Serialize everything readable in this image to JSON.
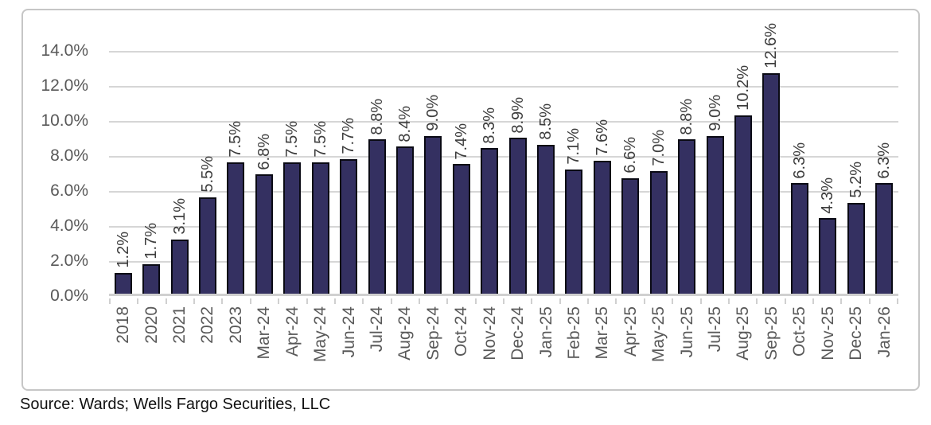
{
  "chart_data": {
    "type": "bar",
    "title": "",
    "xlabel": "",
    "ylabel": "",
    "categories": [
      "2018",
      "2020",
      "2021",
      "2022",
      "2023",
      "Mar-24",
      "Apr-24",
      "May-24",
      "Jun-24",
      "Jul-24",
      "Aug-24",
      "Sep-24",
      "Oct-24",
      "Nov-24",
      "Dec-24",
      "Jan-25",
      "Feb-25",
      "Mar-25",
      "Apr-25",
      "May-25",
      "Jun-25",
      "Jul-25",
      "Aug-25",
      "Sep-25",
      "Oct-25",
      "Nov-25",
      "Dec-25",
      "Jan-26"
    ],
    "values": [
      1.2,
      1.7,
      3.1,
      5.5,
      7.5,
      6.8,
      7.5,
      7.5,
      7.7,
      8.8,
      8.4,
      9.0,
      7.4,
      8.3,
      8.9,
      8.5,
      7.1,
      7.6,
      6.6,
      7.0,
      8.8,
      9.0,
      10.2,
      12.6,
      6.3,
      4.3,
      5.2,
      6.3
    ],
    "data_labels": [
      "1.2%",
      "1.7%",
      "3.1%",
      "5.5%",
      "7.5%",
      "6.8%",
      "7.5%",
      "7.5%",
      "7.7%",
      "8.8%",
      "8.4%",
      "9.0%",
      "7.4%",
      "8.3%",
      "8.9%",
      "8.5%",
      "7.1%",
      "7.6%",
      "6.6%",
      "7.0%",
      "8.8%",
      "9.0%",
      "10.2%",
      "12.6%",
      "6.3%",
      "4.3%",
      "5.2%",
      "6.3%"
    ],
    "y_tick_labels_top_to_bottom": [
      "14.0%",
      "12.0%",
      "10.0%",
      "8.0%",
      "6.0%",
      "4.0%",
      "2.0%",
      "0.0%"
    ],
    "ylim": [
      0,
      14
    ],
    "y_tick_step": 2,
    "grid": true,
    "legend": "none",
    "bar_color": "#343061",
    "bar_outline_color": "#0a0a14"
  },
  "source": "Source: Wards; Wells Fargo Securities, LLC"
}
